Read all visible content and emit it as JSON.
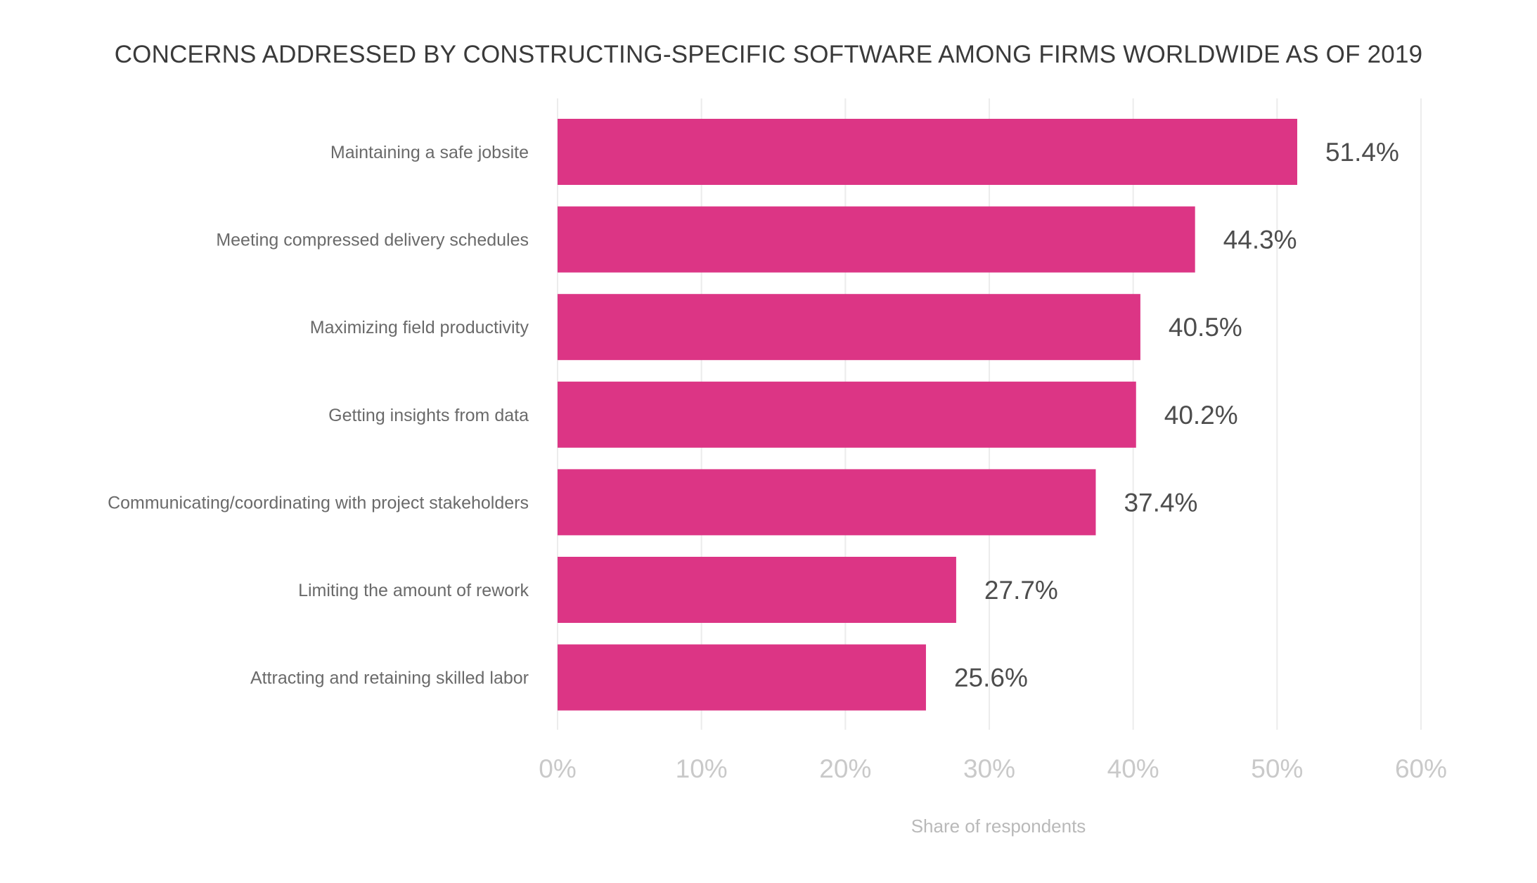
{
  "chart_data": {
    "type": "bar",
    "orientation": "horizontal",
    "title": "CONCERNS ADDRESSED BY CONSTRUCTING-SPECIFIC SOFTWARE AMONG FIRMS WORLDWIDE AS OF 2019",
    "xlabel": "Share of respondents",
    "ylabel": "",
    "categories": [
      "Maintaining a safe jobsite",
      "Meeting compressed delivery schedules",
      "Maximizing field productivity",
      "Getting insights from data",
      "Communicating/coordinating with project stakeholders",
      "Limiting the amount of rework",
      "Attracting and retaining skilled labor"
    ],
    "values": [
      51.4,
      44.3,
      40.5,
      40.2,
      37.4,
      27.7,
      25.6
    ],
    "value_labels": [
      "51.4%",
      "44.3%",
      "40.5%",
      "40.2%",
      "37.4%",
      "27.7%",
      "25.6%"
    ],
    "xlim": [
      0,
      60
    ],
    "x_ticks": [
      0,
      10,
      20,
      30,
      40,
      50,
      60
    ],
    "x_tick_labels": [
      "0%",
      "10%",
      "20%",
      "30%",
      "40%",
      "50%",
      "60%"
    ],
    "grid": "vertical",
    "legend": "none",
    "colors": {
      "bar": "#dc3585"
    }
  }
}
